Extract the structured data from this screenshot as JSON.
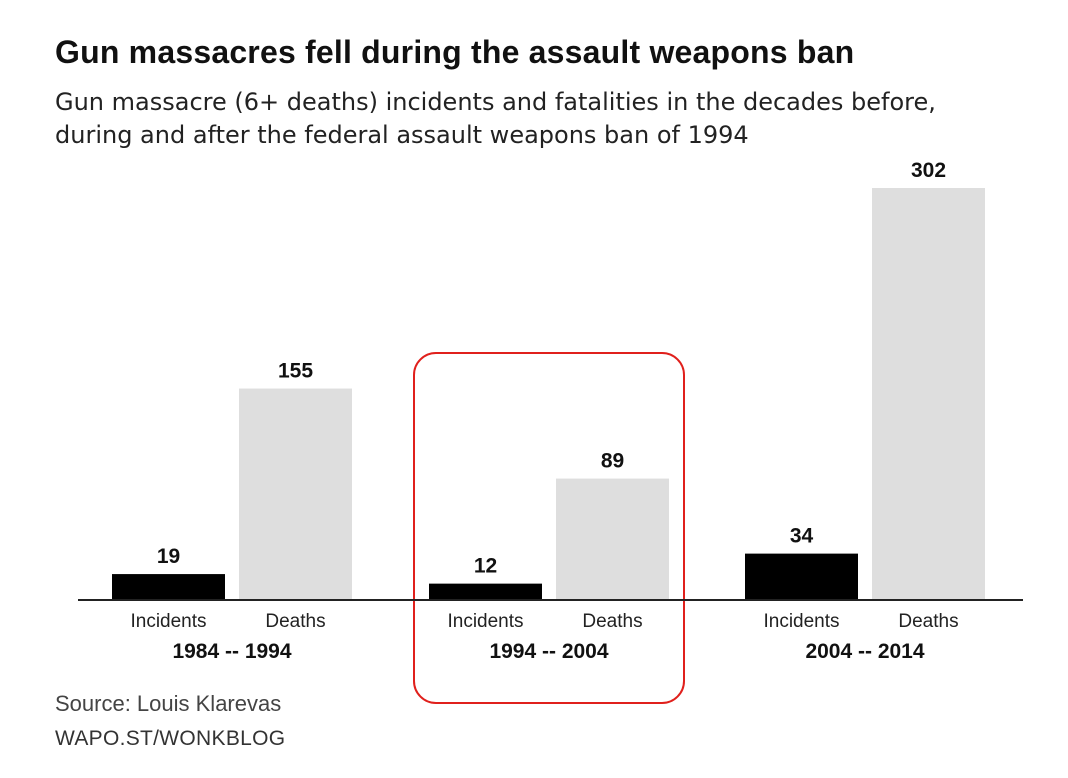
{
  "title": "Gun massacres fell during the assault weapons ban",
  "subtitle": "Gun massacre (6+ deaths) incidents and fatalities in the decades before, during and after the federal assault weapons ban of 1994",
  "source": "Source: Louis Klarevas",
  "credit": "WAPO.ST/WONKBLOG",
  "colors": {
    "incidents": "#000000",
    "deaths": "#dedede",
    "highlight": "#e0201c"
  },
  "chart_data": {
    "type": "bar",
    "categories": [
      "1984 -- 1994",
      "1994 -- 2004",
      "2004 -- 2014"
    ],
    "series": [
      {
        "name": "Incidents",
        "values": [
          19,
          12,
          34
        ]
      },
      {
        "name": "Deaths",
        "values": [
          155,
          89,
          302
        ]
      }
    ],
    "highlighted_category": "1994 -- 2004",
    "ylim": [
      0,
      302
    ],
    "grid": false,
    "value_labels": true
  }
}
